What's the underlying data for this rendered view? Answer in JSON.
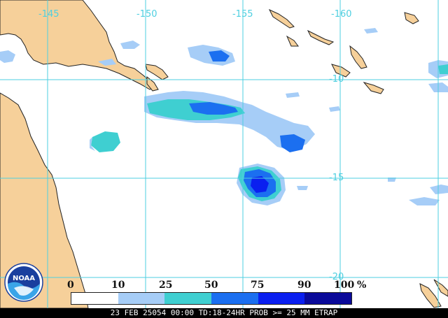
{
  "map": {
    "longitude_labels": [
      "-145",
      "-150",
      "-155",
      "-160"
    ],
    "latitude_labels": [
      "-10",
      "-15",
      "-20"
    ],
    "colors": {
      "ocean": "#ffffff",
      "land": "#f6d09a",
      "grid": "#4ecfe0",
      "coast": "#222222"
    }
  },
  "legend": {
    "ticks": [
      "0",
      "10",
      "25",
      "50",
      "75",
      "90",
      "100"
    ],
    "unit": "%",
    "bins": [
      {
        "from": 0,
        "to": 10,
        "color": "#ffffff"
      },
      {
        "from": 10,
        "to": 25,
        "color": "#a6cdf7"
      },
      {
        "from": 25,
        "to": 50,
        "color": "#3fcfd1"
      },
      {
        "from": 50,
        "to": 75,
        "color": "#1b6ff0"
      },
      {
        "from": 75,
        "to": 90,
        "color": "#0a1ff0"
      },
      {
        "from": 90,
        "to": 100,
        "color": "#0a0a9a"
      }
    ]
  },
  "logo": {
    "text": "NOAA"
  },
  "footer": {
    "caption": "23 FEB 25054 00:00 TD:18-24HR PROB >= 25 MM ETRAP"
  }
}
